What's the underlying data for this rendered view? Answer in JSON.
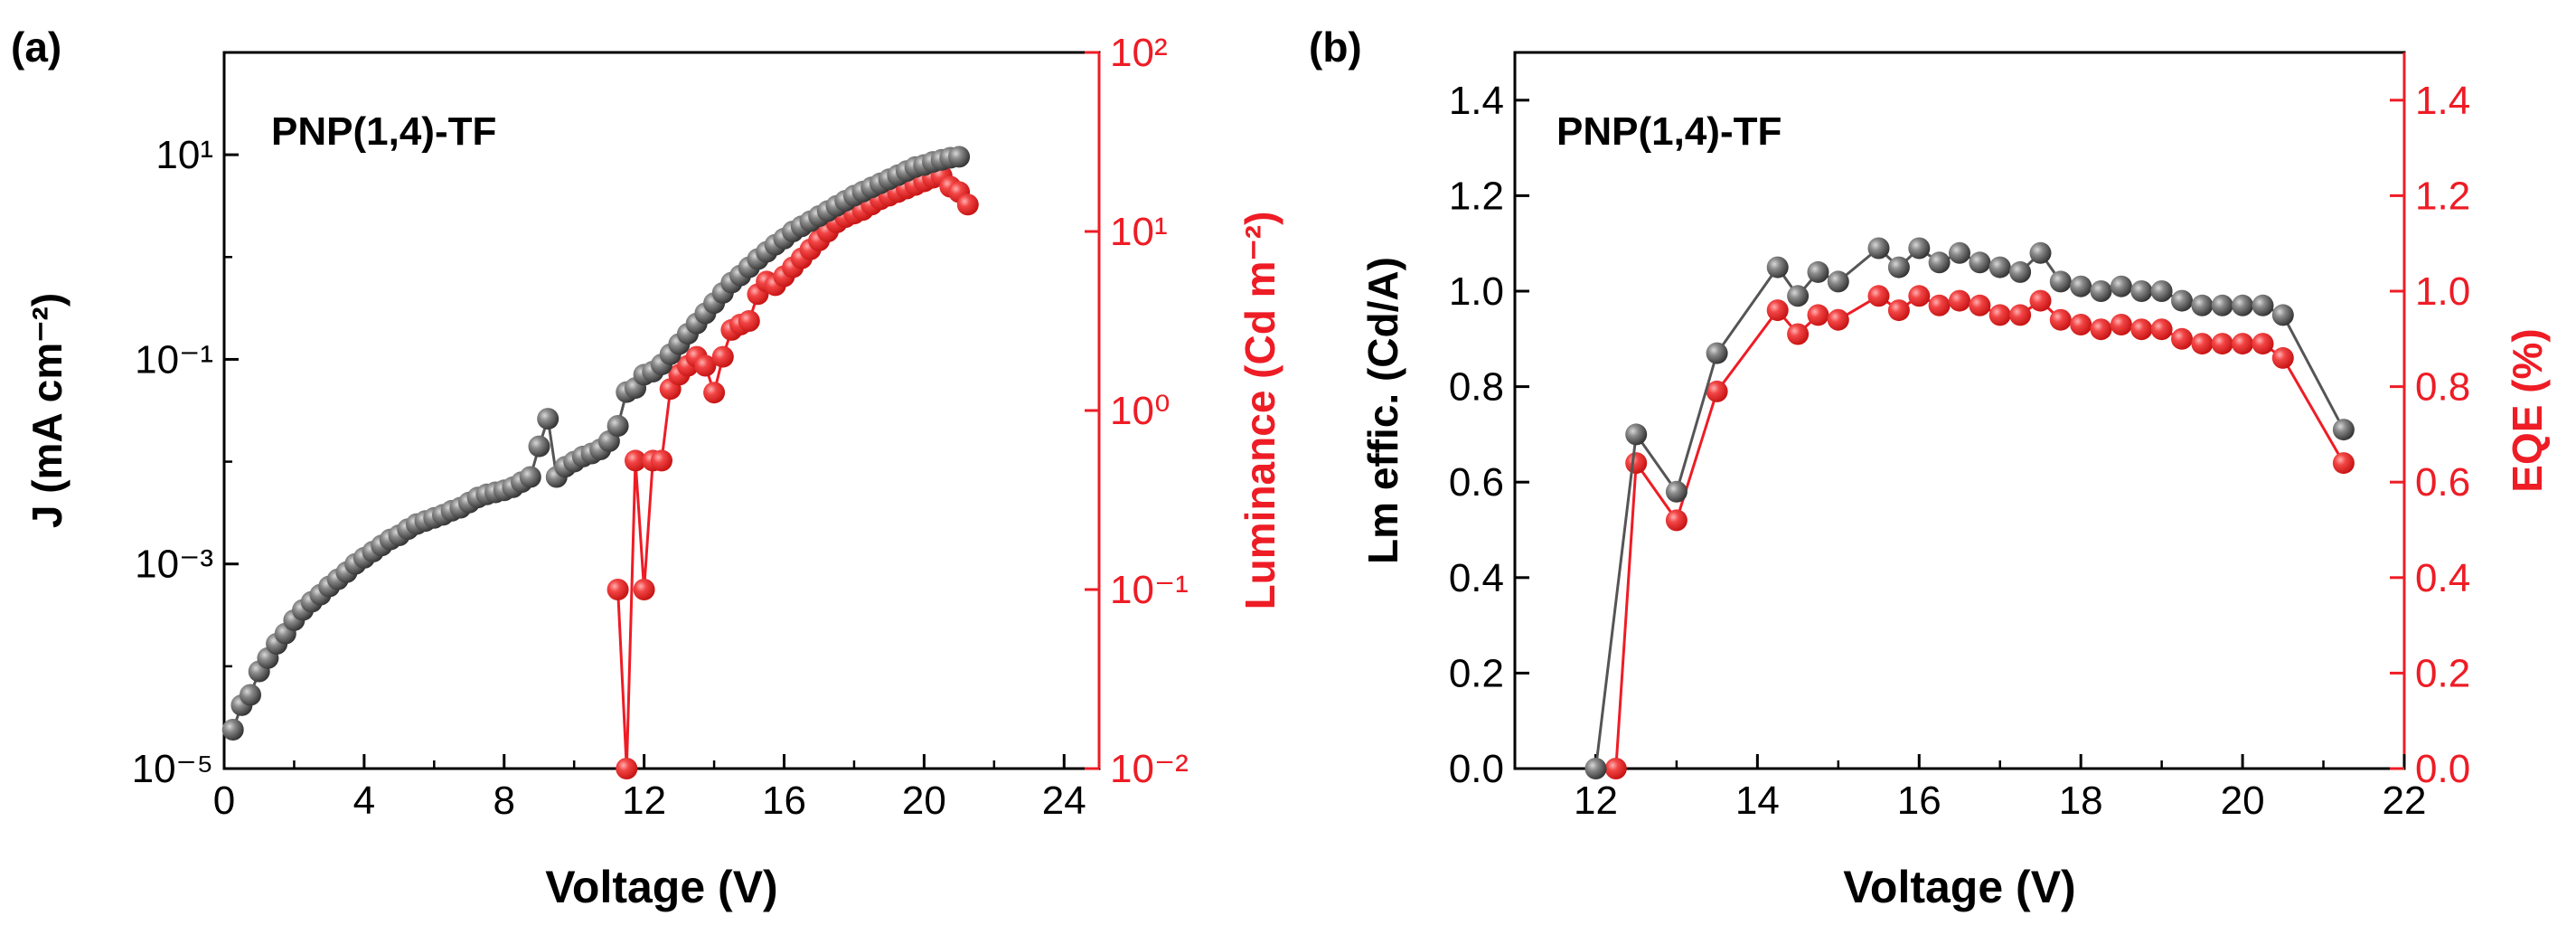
{
  "chart_data": [
    {
      "panel_label": "(a)",
      "type": "scatter",
      "title": "PNP(1,4)-TF",
      "xlabel": "Voltage (V)",
      "ylabel_left": "J (mA cm⁻²)",
      "ylabel_right": "Luminance (Cd m⁻²)",
      "xlim": [
        0,
        25
      ],
      "xticks": [
        0,
        4,
        8,
        12,
        16,
        20,
        24
      ],
      "ylim_left_log10": [
        -5,
        2
      ],
      "yticks_left": [
        {
          "exp": -5,
          "label": "10⁻⁵"
        },
        {
          "exp": -3,
          "label": "10⁻³"
        },
        {
          "exp": -1,
          "label": "10⁻¹"
        },
        {
          "exp": 1,
          "label": "10¹"
        }
      ],
      "ylim_right_log10": [
        -2,
        2
      ],
      "yticks_right": [
        {
          "exp": -2,
          "label": "10⁻²"
        },
        {
          "exp": -1,
          "label": "10⁻¹"
        },
        {
          "exp": 0,
          "label": "10⁰"
        },
        {
          "exp": 1,
          "label": "10¹"
        },
        {
          "exp": 2,
          "label": "10²"
        }
      ],
      "series": [
        {
          "name": "J",
          "axis": "left",
          "color": "#555555",
          "x": [
            0.25,
            0.5,
            0.75,
            1.0,
            1.25,
            1.5,
            1.75,
            2.0,
            2.25,
            2.5,
            2.75,
            3.0,
            3.25,
            3.5,
            3.75,
            4.0,
            4.25,
            4.5,
            4.75,
            5.0,
            5.25,
            5.5,
            5.75,
            6.0,
            6.25,
            6.5,
            6.75,
            7.0,
            7.25,
            7.5,
            7.75,
            8.0,
            8.25,
            8.5,
            8.75,
            9.0,
            9.25,
            9.5,
            9.75,
            10.0,
            10.25,
            10.5,
            10.75,
            11.0,
            11.25,
            11.5,
            11.75,
            12.0,
            12.25,
            12.5,
            12.75,
            13.0,
            13.25,
            13.5,
            13.75,
            14.0,
            14.25,
            14.5,
            14.75,
            15.0,
            15.25,
            15.5,
            15.75,
            16.0,
            16.25,
            16.5,
            16.75,
            17.0,
            17.25,
            17.5,
            17.75,
            18.0,
            18.25,
            18.5,
            18.75,
            19.0,
            19.25,
            19.5,
            19.75,
            20.0,
            20.25,
            20.5,
            20.75,
            21.0
          ],
          "log10_values": [
            -4.62,
            -4.38,
            -4.28,
            -4.05,
            -3.92,
            -3.78,
            -3.68,
            -3.55,
            -3.45,
            -3.37,
            -3.3,
            -3.22,
            -3.15,
            -3.08,
            -3.0,
            -2.94,
            -2.88,
            -2.82,
            -2.76,
            -2.72,
            -2.66,
            -2.61,
            -2.58,
            -2.55,
            -2.52,
            -2.48,
            -2.45,
            -2.4,
            -2.35,
            -2.32,
            -2.3,
            -2.28,
            -2.25,
            -2.2,
            -2.15,
            -1.85,
            -1.58,
            -2.15,
            -2.05,
            -2.0,
            -1.95,
            -1.92,
            -1.88,
            -1.8,
            -1.65,
            -1.32,
            -1.28,
            -1.15,
            -1.12,
            -1.05,
            -0.95,
            -0.85,
            -0.75,
            -0.65,
            -0.55,
            -0.45,
            -0.35,
            -0.25,
            -0.18,
            -0.1,
            -0.02,
            0.05,
            0.12,
            0.18,
            0.25,
            0.3,
            0.35,
            0.4,
            0.45,
            0.5,
            0.55,
            0.6,
            0.64,
            0.68,
            0.72,
            0.76,
            0.8,
            0.84,
            0.88,
            0.9,
            0.93,
            0.95,
            0.97,
            0.98
          ]
        },
        {
          "name": "Luminance",
          "axis": "right",
          "color": "#ee1c25",
          "x": [
            11.25,
            11.5,
            11.75,
            12.0,
            12.25,
            12.5,
            12.75,
            13.0,
            13.25,
            13.5,
            13.75,
            14.0,
            14.25,
            14.5,
            14.75,
            15.0,
            15.25,
            15.5,
            15.75,
            16.0,
            16.25,
            16.5,
            16.75,
            17.0,
            17.25,
            17.5,
            17.75,
            18.0,
            18.25,
            18.5,
            18.75,
            19.0,
            19.25,
            19.5,
            19.75,
            20.0,
            20.25,
            20.5,
            20.75,
            21.0,
            21.25
          ],
          "log10_values": [
            -1.0,
            -2.0,
            -0.28,
            -1.0,
            -0.28,
            -0.28,
            0.12,
            0.2,
            0.25,
            0.3,
            0.25,
            0.1,
            0.3,
            0.45,
            0.48,
            0.5,
            0.65,
            0.72,
            0.7,
            0.75,
            0.8,
            0.85,
            0.9,
            0.95,
            1.0,
            1.05,
            1.08,
            1.1,
            1.12,
            1.15,
            1.18,
            1.2,
            1.22,
            1.24,
            1.26,
            1.28,
            1.3,
            1.31,
            1.25,
            1.22,
            1.15
          ]
        }
      ]
    },
    {
      "panel_label": "(b)",
      "type": "scatter",
      "title": "PNP(1,4)-TF",
      "xlabel": "Voltage (V)",
      "ylabel_left": "Lm effic. (Cd/A)",
      "ylabel_right": "EQE (%)",
      "xlim": [
        11,
        22
      ],
      "xticks": [
        12,
        14,
        16,
        18,
        20,
        22
      ],
      "ylim_left": [
        0,
        1.5
      ],
      "yticks_left": [
        0.0,
        0.2,
        0.4,
        0.6,
        0.8,
        1.0,
        1.2,
        1.4
      ],
      "ylim_right": [
        0,
        1.5
      ],
      "yticks_right": [
        0.0,
        0.2,
        0.4,
        0.6,
        0.8,
        1.0,
        1.2,
        1.4
      ],
      "series": [
        {
          "name": "Lm effic.",
          "axis": "left",
          "color": "#555555",
          "x": [
            12.0,
            12.5,
            13.0,
            13.5,
            14.25,
            14.5,
            14.75,
            15.0,
            15.5,
            15.75,
            16.0,
            16.25,
            16.5,
            16.75,
            17.0,
            17.25,
            17.5,
            17.75,
            18.0,
            18.25,
            18.5,
            18.75,
            19.0,
            19.25,
            19.5,
            19.75,
            20.0,
            20.25,
            20.5,
            21.25
          ],
          "values": [
            0.0,
            0.7,
            0.58,
            0.87,
            1.05,
            0.99,
            1.04,
            1.02,
            1.09,
            1.05,
            1.09,
            1.06,
            1.08,
            1.06,
            1.05,
            1.04,
            1.08,
            1.02,
            1.01,
            1.0,
            1.01,
            1.0,
            1.0,
            0.98,
            0.97,
            0.97,
            0.97,
            0.97,
            0.95,
            0.71
          ]
        },
        {
          "name": "EQE",
          "axis": "right",
          "color": "#ee1c25",
          "x": [
            12.25,
            12.5,
            13.0,
            13.5,
            14.25,
            14.5,
            14.75,
            15.0,
            15.5,
            15.75,
            16.0,
            16.25,
            16.5,
            16.75,
            17.0,
            17.25,
            17.5,
            17.75,
            18.0,
            18.25,
            18.5,
            18.75,
            19.0,
            19.25,
            19.5,
            19.75,
            20.0,
            20.25,
            20.5,
            21.25
          ],
          "values": [
            0.0,
            0.64,
            0.52,
            0.79,
            0.96,
            0.91,
            0.95,
            0.94,
            0.99,
            0.96,
            0.99,
            0.97,
            0.98,
            0.97,
            0.95,
            0.95,
            0.98,
            0.94,
            0.93,
            0.92,
            0.93,
            0.92,
            0.92,
            0.9,
            0.89,
            0.89,
            0.89,
            0.89,
            0.86,
            0.64
          ]
        }
      ]
    }
  ]
}
